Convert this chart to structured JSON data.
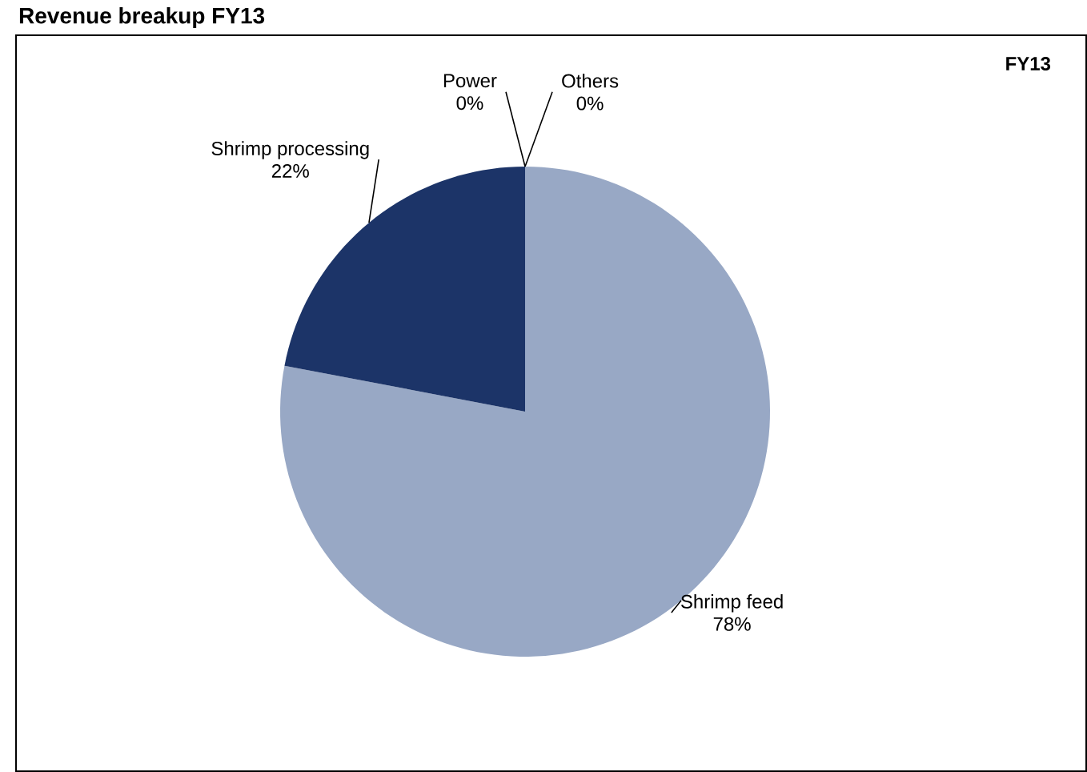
{
  "chart_data": {
    "type": "pie",
    "title": "Revenue breakup FY13",
    "subtitle": "FY13",
    "categories": [
      "Shrimp feed",
      "Shrimp processing",
      "Power",
      "Others"
    ],
    "values": [
      78,
      22,
      0,
      0
    ],
    "colors": [
      "#98a8c5",
      "#1c3468",
      "#7f7f7f",
      "#a6a6a6"
    ],
    "value_labels": [
      "78%",
      "22%",
      "0%",
      "0%"
    ]
  }
}
